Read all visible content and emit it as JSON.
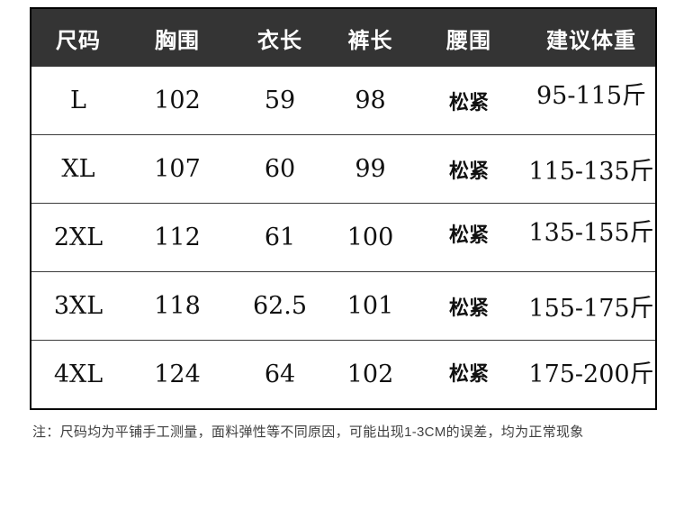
{
  "chart_data": {
    "type": "table",
    "title": "",
    "columns": [
      "尺码",
      "胸围",
      "衣长",
      "裤长",
      "腰围",
      "建议体重"
    ],
    "rows": [
      [
        "L",
        "102",
        "59",
        "98",
        "松紧",
        "95-115斤"
      ],
      [
        "XL",
        "107",
        "60",
        "99",
        "松紧",
        "115-135斤"
      ],
      [
        "2XL",
        "112",
        "61",
        "100",
        "松紧",
        "135-155斤"
      ],
      [
        "3XL",
        "118",
        "62.5",
        "101",
        "松紧",
        "155-175斤"
      ],
      [
        "4XL",
        "124",
        "64",
        "102",
        "松紧",
        "175-200斤"
      ]
    ]
  },
  "note": {
    "text": "注：尺码均为平铺手工测量，面料弹性等不同原因，可能出现1-3CM的误差，均为正常现象"
  },
  "colors": {
    "header_bg": "#343434",
    "header_text": "#ffffff",
    "outer_border": "#000000",
    "row_divider": "#3c3c3c",
    "body_text": "#111111",
    "note_text": "#404040"
  }
}
